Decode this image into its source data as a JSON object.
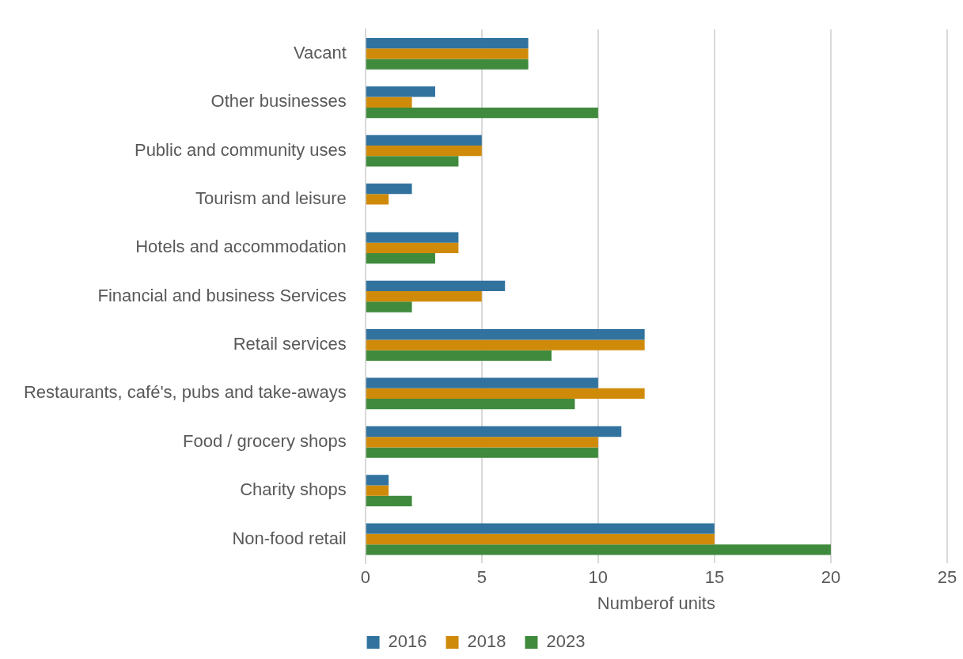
{
  "chart_data": {
    "type": "bar",
    "orientation": "horizontal",
    "xlabel": "Numberof units",
    "categories": [
      "Vacant",
      "Other businesses",
      "Public and community uses",
      "Tourism and leisure",
      "Hotels and accommodation",
      "Financial and business Services",
      "Retail services",
      "Restaurants, café's, pubs and take-aways",
      "Food / grocery shops",
      "Charity shops",
      "Non-food retail"
    ],
    "series": [
      {
        "name": "2016",
        "color": "#31739e",
        "values": [
          7,
          3,
          5,
          2,
          4,
          6,
          12,
          10,
          11,
          1,
          15
        ]
      },
      {
        "name": "2018",
        "color": "#d08a0a",
        "values": [
          7,
          2,
          5,
          1,
          4,
          5,
          12,
          12,
          10,
          1,
          15
        ]
      },
      {
        "name": "2023",
        "color": "#3f8a3c",
        "values": [
          7,
          10,
          4,
          0,
          3,
          2,
          8,
          9,
          10,
          2,
          20
        ]
      }
    ],
    "xlim": [
      0,
      25
    ],
    "xticks": [
      0,
      5,
      10,
      15,
      20,
      25
    ],
    "grid": "x",
    "legend": "bottom"
  }
}
